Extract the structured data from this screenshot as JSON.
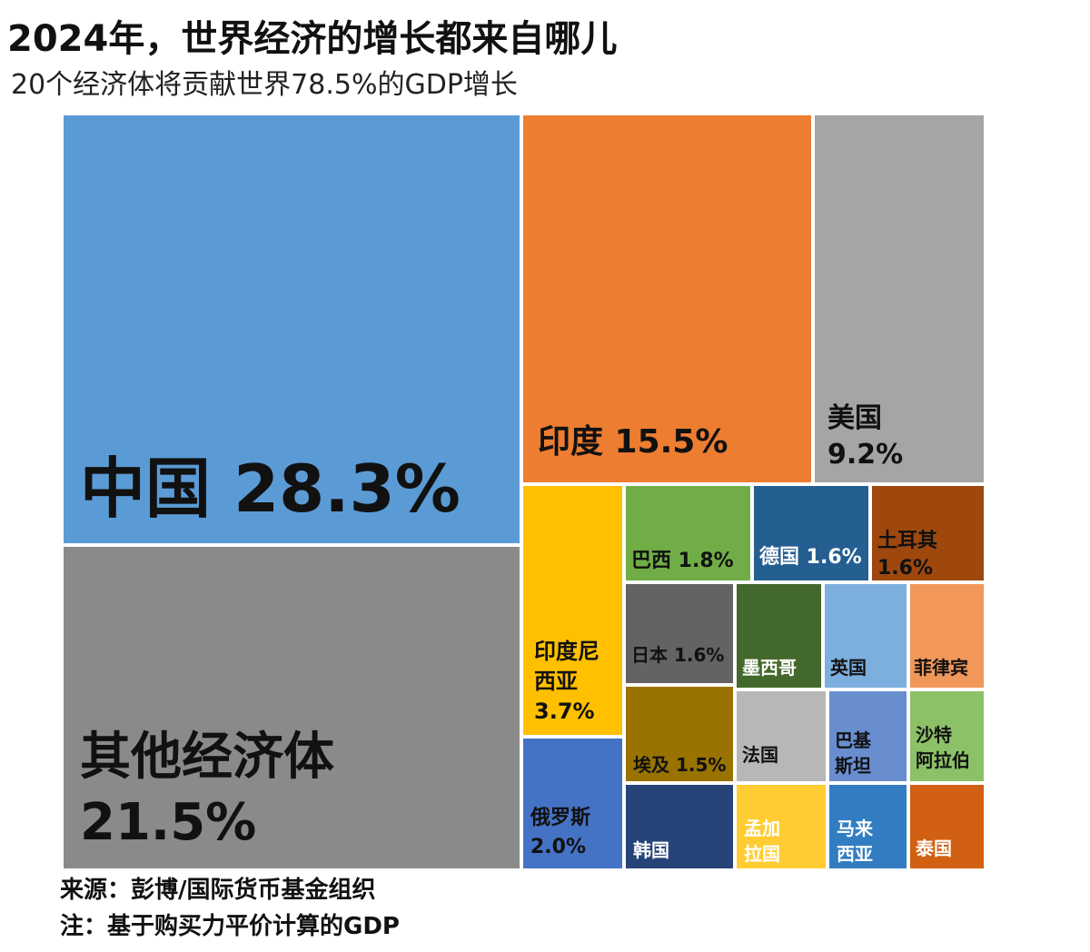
{
  "title": "2024年，世界经济的增长都来自哪儿",
  "subtitle": "20个经济体将贡献世界78.5%的GDP增长",
  "source": "来源：彭博/国际货币基金组织",
  "note": "注：基于购买力平价计算的GDP",
  "chart_data": {
    "type": "treemap",
    "title": "2024年，世界经济的增长都来自哪儿",
    "subtitle": "20个经济体将贡献世界78.5%的GDP增长",
    "unit": "%",
    "items": [
      {
        "name": "中国",
        "label": "中国   28.3%",
        "value": 28.3,
        "color": "#5b9bd5"
      },
      {
        "name": "其他经济体",
        "label": "其他经济体\n21.5%",
        "value": 21.5,
        "color": "#8a8a8a"
      },
      {
        "name": "印度",
        "label": "印度   15.5%",
        "value": 15.5,
        "color": "#ed7d31"
      },
      {
        "name": "美国",
        "label": "美国\n9.2%",
        "value": 9.2,
        "color": "#a5a5a5"
      },
      {
        "name": "印度尼西亚",
        "label": "印度尼\n西亚\n3.7%",
        "value": 3.7,
        "color": "#ffc000"
      },
      {
        "name": "巴西",
        "label": "巴西 1.8%",
        "value": 1.8,
        "color": "#70ad47"
      },
      {
        "name": "德国",
        "label": "德国 1.6%",
        "value": 1.6,
        "color": "#255e91"
      },
      {
        "name": "土耳其",
        "label": "土耳其\n1.6%",
        "value": 1.6,
        "color": "#9e480e"
      },
      {
        "name": "日本",
        "label": "日本 1.6%",
        "value": 1.6,
        "color": "#636363"
      },
      {
        "name": "墨西哥",
        "label": "墨西哥",
        "value": null,
        "color": "#43682b"
      },
      {
        "name": "英国",
        "label": "英国",
        "value": null,
        "color": "#7cafdd"
      },
      {
        "name": "菲律宾",
        "label": "菲律宾",
        "value": null,
        "color": "#f1975a"
      },
      {
        "name": "埃及",
        "label": "埃及 1.5%",
        "value": 1.5,
        "color": "#997300"
      },
      {
        "name": "法国",
        "label": "法国",
        "value": null,
        "color": "#b7b7b7"
      },
      {
        "name": "巴基斯坦",
        "label": "巴基\n斯坦",
        "value": null,
        "color": "#698ed0"
      },
      {
        "name": "沙特阿拉伯",
        "label": "沙特\n阿拉伯",
        "value": null,
        "color": "#8cc168"
      },
      {
        "name": "俄罗斯",
        "label": "俄罗斯\n2.0%",
        "value": 2.0,
        "color": "#4472c4"
      },
      {
        "name": "韩国",
        "label": "韩国",
        "value": null,
        "color": "#264478"
      },
      {
        "name": "孟加拉国",
        "label": "孟加\n拉国",
        "value": null,
        "color": "#ffcd33"
      },
      {
        "name": "马来西亚",
        "label": "马来\n西亚",
        "value": null,
        "color": "#327dc2"
      },
      {
        "name": "泰国",
        "label": "泰国",
        "value": null,
        "color": "#d26012"
      }
    ]
  }
}
